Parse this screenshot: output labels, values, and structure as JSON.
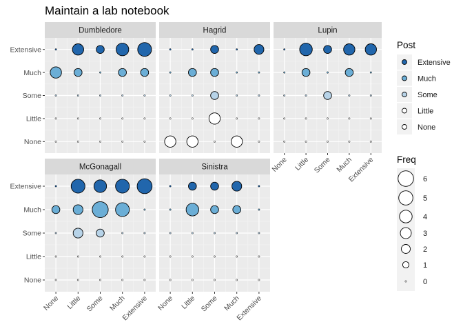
{
  "chart_data": {
    "type": "scatter",
    "title": "Maintain a lab notebook",
    "levels": [
      "None",
      "Little",
      "Some",
      "Much",
      "Extensive"
    ],
    "x_tick_labels": [
      "None",
      "Little",
      "Some",
      "Much",
      "Extensive"
    ],
    "y_tick_labels": [
      "None",
      "Little",
      "Some",
      "Much",
      "Extensive"
    ],
    "xlabel": "",
    "ylabel": "",
    "fill_colors": {
      "Extensive": "#2166ac",
      "Much": "#6baed6",
      "Some": "#b7d3e8",
      "Little": "#ffffff",
      "None": "#ffffff"
    },
    "panel_background": "#ebebeb",
    "strip_background": "#d9d9d9",
    "grid": true,
    "facets": [
      {
        "name": "Dumbledore",
        "points": [
          {
            "x": "Little",
            "y": "Extensive",
            "freq": 4
          },
          {
            "x": "Some",
            "y": "Extensive",
            "freq": 2
          },
          {
            "x": "Much",
            "y": "Extensive",
            "freq": 5
          },
          {
            "x": "Extensive",
            "y": "Extensive",
            "freq": 6
          },
          {
            "x": "None",
            "y": "Much",
            "freq": 4
          },
          {
            "x": "Little",
            "y": "Much",
            "freq": 2
          },
          {
            "x": "Much",
            "y": "Much",
            "freq": 2
          },
          {
            "x": "Extensive",
            "y": "Much",
            "freq": 2
          }
        ]
      },
      {
        "name": "Hagrid",
        "points": [
          {
            "x": "Some",
            "y": "Extensive",
            "freq": 2
          },
          {
            "x": "Extensive",
            "y": "Extensive",
            "freq": 3
          },
          {
            "x": "Little",
            "y": "Much",
            "freq": 2
          },
          {
            "x": "Some",
            "y": "Much",
            "freq": 2
          },
          {
            "x": "Some",
            "y": "Some",
            "freq": 2
          },
          {
            "x": "Some",
            "y": "Little",
            "freq": 4
          },
          {
            "x": "None",
            "y": "None",
            "freq": 4
          },
          {
            "x": "Little",
            "y": "None",
            "freq": 4
          },
          {
            "x": "Much",
            "y": "None",
            "freq": 4
          }
        ]
      },
      {
        "name": "Lupin",
        "points": [
          {
            "x": "Little",
            "y": "Extensive",
            "freq": 5
          },
          {
            "x": "Some",
            "y": "Extensive",
            "freq": 2
          },
          {
            "x": "Much",
            "y": "Extensive",
            "freq": 4
          },
          {
            "x": "Extensive",
            "y": "Extensive",
            "freq": 4
          },
          {
            "x": "Little",
            "y": "Much",
            "freq": 2
          },
          {
            "x": "Much",
            "y": "Much",
            "freq": 2
          },
          {
            "x": "Some",
            "y": "Some",
            "freq": 2
          }
        ]
      },
      {
        "name": "McGonagall",
        "points": [
          {
            "x": "Little",
            "y": "Extensive",
            "freq": 6
          },
          {
            "x": "Some",
            "y": "Extensive",
            "freq": 5
          },
          {
            "x": "Much",
            "y": "Extensive",
            "freq": 6
          },
          {
            "x": "Extensive",
            "y": "Extensive",
            "freq": 7
          },
          {
            "x": "None",
            "y": "Much",
            "freq": 2
          },
          {
            "x": "Little",
            "y": "Much",
            "freq": 3
          },
          {
            "x": "Some",
            "y": "Much",
            "freq": 8
          },
          {
            "x": "Much",
            "y": "Much",
            "freq": 6
          },
          {
            "x": "Little",
            "y": "Some",
            "freq": 3
          },
          {
            "x": "Some",
            "y": "Some",
            "freq": 2
          }
        ]
      },
      {
        "name": "Sinistra",
        "points": [
          {
            "x": "Little",
            "y": "Extensive",
            "freq": 2
          },
          {
            "x": "Some",
            "y": "Extensive",
            "freq": 2
          },
          {
            "x": "Much",
            "y": "Extensive",
            "freq": 3
          },
          {
            "x": "Little",
            "y": "Much",
            "freq": 5
          },
          {
            "x": "Some",
            "y": "Much",
            "freq": 2
          },
          {
            "x": "Much",
            "y": "Much",
            "freq": 2
          }
        ]
      }
    ],
    "legend_fill": {
      "title": "Post",
      "placement": "right",
      "entries": [
        "Extensive",
        "Much",
        "Some",
        "Little",
        "None"
      ]
    },
    "legend_size": {
      "title": "Freq",
      "placement": "right",
      "entries": [
        6,
        5,
        4,
        3,
        2,
        1,
        0
      ]
    }
  }
}
